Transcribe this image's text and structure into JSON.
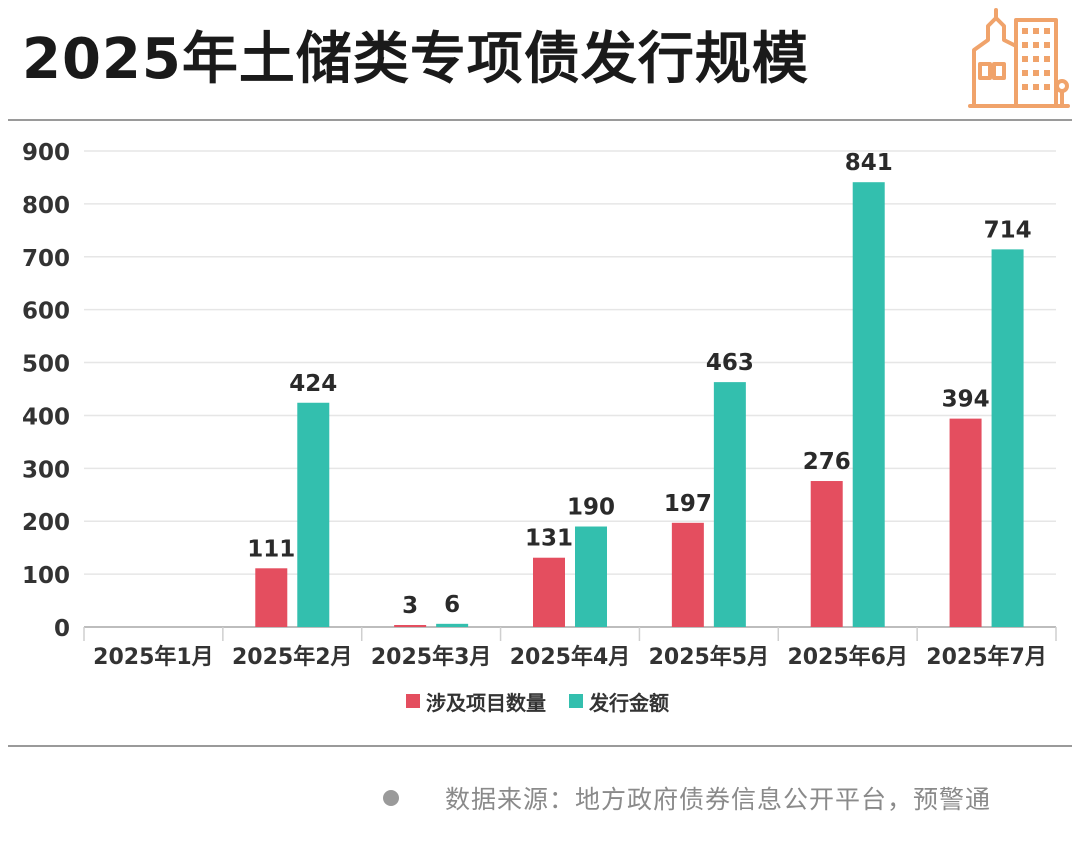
{
  "header": {
    "title": "2025年土储类专项债发行规模",
    "logo_icon": "building-icon"
  },
  "footer": {
    "source_text": "数据来源：地方政府债券信息公开平台，预警通"
  },
  "colors": {
    "series1": "#e44e5f",
    "series2": "#33bfae",
    "logo": "#f0a36b"
  },
  "chart_data": {
    "type": "bar",
    "categories": [
      "2025年1月",
      "2025年2月",
      "2025年3月",
      "2025年4月",
      "2025年5月",
      "2025年6月",
      "2025年7月"
    ],
    "series": [
      {
        "name": "涉及项目数量",
        "values": [
          0,
          111,
          3,
          131,
          197,
          276,
          394
        ],
        "labels": [
          "",
          "111",
          "3",
          "131",
          "197",
          "276",
          "394"
        ]
      },
      {
        "name": "发行金额",
        "values": [
          0,
          424,
          6,
          190,
          463,
          841,
          714
        ],
        "labels": [
          "",
          "424",
          "6",
          "190",
          "463",
          "841",
          "714"
        ]
      }
    ],
    "yticks": [
      "0",
      "100",
      "200",
      "300",
      "400",
      "500",
      "600",
      "700",
      "800",
      "900"
    ],
    "ylim": [
      0,
      900
    ],
    "grid": true,
    "legend_position": "bottom-center",
    "data_labels": true
  }
}
